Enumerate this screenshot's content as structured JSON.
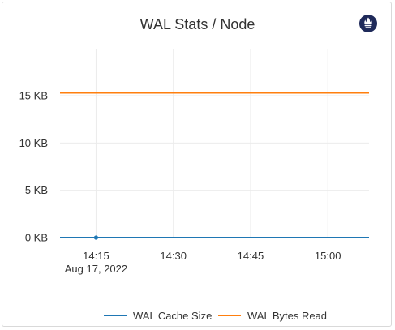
{
  "panel": {
    "title": "WAL Stats / Node",
    "icon": "prometheus-icon",
    "accent": "#1f2a5a"
  },
  "chart_data": {
    "type": "line",
    "title": "WAL Stats / Node",
    "x_ticks": [
      "14:15",
      "14:30",
      "14:45",
      "15:00"
    ],
    "x_subtick_label": "Aug 17, 2022",
    "y_ticks": [
      "0 KB",
      "5 KB",
      "10 KB",
      "15 KB"
    ],
    "y_tick_values": [
      0,
      5,
      10,
      15
    ],
    "ylim": [
      0,
      15
    ],
    "xlim": [
      "14:08",
      "15:08"
    ],
    "grid": true,
    "legend_placement": "bottom",
    "series": [
      {
        "name": "WAL Cache Size",
        "color": "#1f77b4",
        "x": [
          "14:08",
          "15:08"
        ],
        "values": [
          0,
          0
        ]
      },
      {
        "name": "WAL Bytes Read",
        "color": "#ff7f0e",
        "x": [
          "14:08",
          "15:08"
        ],
        "values": [
          15.3,
          15.3
        ]
      }
    ],
    "annotations": [
      {
        "x": "14:15",
        "y": 0,
        "series": "WAL Cache Size",
        "marker": "point"
      }
    ]
  }
}
